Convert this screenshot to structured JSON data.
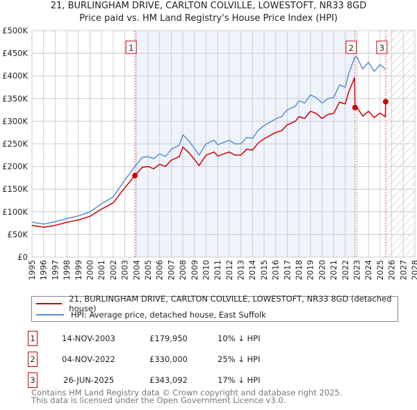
{
  "header": {
    "title": "21, BURLINGHAM DRIVE, CARLTON COLVILLE, LOWESTOFT, NR33 8GD",
    "subtitle": "Price paid vs. HM Land Registry's House Price Index (HPI)"
  },
  "chart_data": {
    "type": "line",
    "title": "21, BURLINGHAM DRIVE, CARLTON COLVILLE, LOWESTOFT, NR33 8GD",
    "xlim": [
      1995,
      2028
    ],
    "ylim": [
      0,
      500000
    ],
    "x_ticks": [
      "1995",
      "1996",
      "1997",
      "1998",
      "1999",
      "2000",
      "2001",
      "2002",
      "2003",
      "2004",
      "2005",
      "2006",
      "2007",
      "2008",
      "2009",
      "2010",
      "2011",
      "2012",
      "2013",
      "2014",
      "2015",
      "2016",
      "2017",
      "2018",
      "2019",
      "2020",
      "2021",
      "2022",
      "2023",
      "2024",
      "2025",
      "2026",
      "2027",
      "2028"
    ],
    "y_ticks": [
      {
        "v": 0,
        "label": "£0"
      },
      {
        "v": 50000,
        "label": "£50K"
      },
      {
        "v": 100000,
        "label": "£100K"
      },
      {
        "v": 150000,
        "label": "£150K"
      },
      {
        "v": 200000,
        "label": "£200K"
      },
      {
        "v": 250000,
        "label": "£250K"
      },
      {
        "v": 300000,
        "label": "£300K"
      },
      {
        "v": 350000,
        "label": "£350K"
      },
      {
        "v": 400000,
        "label": "£400K"
      },
      {
        "v": 450000,
        "label": "£450K"
      },
      {
        "v": 500000,
        "label": "£500K"
      }
    ],
    "grid": true,
    "shaded_range": [
      2003.87,
      2022.84
    ],
    "forecast_hatch_from": 2025.48,
    "series": [
      {
        "name": "21, BURLINGHAM DRIVE, CARLTON COLVILLE, LOWESTOFT, NR33 8GD (detached house)",
        "color": "#cc0000",
        "points": [
          [
            1995,
            70000
          ],
          [
            1996,
            66000
          ],
          [
            1997,
            70000
          ],
          [
            1998,
            77000
          ],
          [
            1999,
            82000
          ],
          [
            2000,
            90000
          ],
          [
            2001,
            106000
          ],
          [
            2002,
            120000
          ],
          [
            2003,
            153000
          ],
          [
            2003.87,
            179950
          ],
          [
            2004.5,
            198000
          ],
          [
            2005,
            200000
          ],
          [
            2005.5,
            195000
          ],
          [
            2006,
            205000
          ],
          [
            2006.5,
            200000
          ],
          [
            2007,
            214000
          ],
          [
            2007.7,
            222000
          ],
          [
            2008,
            243000
          ],
          [
            2008.5,
            231000
          ],
          [
            2009,
            216000
          ],
          [
            2009.4,
            202000
          ],
          [
            2010,
            225000
          ],
          [
            2010.7,
            232000
          ],
          [
            2011,
            223000
          ],
          [
            2012,
            232000
          ],
          [
            2012.5,
            225000
          ],
          [
            2013,
            225000
          ],
          [
            2013.5,
            238000
          ],
          [
            2014,
            236000
          ],
          [
            2014.5,
            252000
          ],
          [
            2015,
            261000
          ],
          [
            2016,
            275000
          ],
          [
            2016.5,
            279000
          ],
          [
            2017,
            292000
          ],
          [
            2017.7,
            300000
          ],
          [
            2018,
            310000
          ],
          [
            2018.5,
            306000
          ],
          [
            2019,
            322000
          ],
          [
            2019.5,
            317000
          ],
          [
            2020,
            306000
          ],
          [
            2020.5,
            315000
          ],
          [
            2021,
            317000
          ],
          [
            2021.5,
            342000
          ],
          [
            2022,
            338000
          ],
          [
            2022.3,
            365000
          ],
          [
            2022.8,
            396000
          ],
          [
            2022.84,
            330000
          ],
          [
            2023,
            331000
          ],
          [
            2023.5,
            311000
          ],
          [
            2024,
            322000
          ],
          [
            2024.5,
            308000
          ],
          [
            2025,
            318000
          ],
          [
            2025.45,
            310000
          ],
          [
            2025.48,
            343092
          ]
        ]
      },
      {
        "name": "HPI: Average price, detached house, East Suffolk",
        "color": "#5b8fd0",
        "points": [
          [
            1995,
            77000
          ],
          [
            1996,
            73000
          ],
          [
            1997,
            78000
          ],
          [
            1998,
            85000
          ],
          [
            1999,
            91000
          ],
          [
            2000,
            100000
          ],
          [
            2001,
            118000
          ],
          [
            2002,
            133000
          ],
          [
            2003,
            170000
          ],
          [
            2003.87,
            200000
          ],
          [
            2004.5,
            220000
          ],
          [
            2005,
            222000
          ],
          [
            2005.5,
            217000
          ],
          [
            2006,
            228000
          ],
          [
            2006.5,
            222000
          ],
          [
            2007,
            238000
          ],
          [
            2007.7,
            247000
          ],
          [
            2008,
            270000
          ],
          [
            2008.5,
            257000
          ],
          [
            2009,
            240000
          ],
          [
            2009.4,
            225000
          ],
          [
            2010,
            250000
          ],
          [
            2010.7,
            258000
          ],
          [
            2011,
            248000
          ],
          [
            2012,
            258000
          ],
          [
            2012.5,
            250000
          ],
          [
            2013,
            250000
          ],
          [
            2013.5,
            264000
          ],
          [
            2014,
            262000
          ],
          [
            2014.5,
            280000
          ],
          [
            2015,
            290000
          ],
          [
            2016,
            305000
          ],
          [
            2016.5,
            310000
          ],
          [
            2017,
            325000
          ],
          [
            2017.7,
            333000
          ],
          [
            2018,
            345000
          ],
          [
            2018.5,
            340000
          ],
          [
            2019,
            358000
          ],
          [
            2019.5,
            352000
          ],
          [
            2020,
            340000
          ],
          [
            2020.5,
            350000
          ],
          [
            2021,
            352000
          ],
          [
            2021.5,
            380000
          ],
          [
            2022,
            375000
          ],
          [
            2022.3,
            405000
          ],
          [
            2022.8,
            440000
          ],
          [
            2023,
            442000
          ],
          [
            2023.5,
            415000
          ],
          [
            2024,
            430000
          ],
          [
            2024.5,
            410000
          ],
          [
            2025,
            425000
          ],
          [
            2025.45,
            415000
          ]
        ]
      }
    ],
    "sales": [
      {
        "label": "1",
        "x": 2003.87,
        "price": 179950
      },
      {
        "label": "2",
        "x": 2022.84,
        "price": 330000
      },
      {
        "label": "3",
        "x": 2025.48,
        "price": 343092
      }
    ]
  },
  "legend": {
    "red": "21, BURLINGHAM DRIVE, CARLTON COLVILLE, LOWESTOFT, NR33 8GD (detached house)",
    "blue": "HPI: Average price, detached house, East Suffolk"
  },
  "table": [
    {
      "n": "1",
      "date": "14-NOV-2003",
      "price": "£179,950",
      "hpi": "10% ↓ HPI"
    },
    {
      "n": "2",
      "date": "04-NOV-2022",
      "price": "£330,000",
      "hpi": "25% ↓ HPI"
    },
    {
      "n": "3",
      "date": "26-JUN-2025",
      "price": "£343,092",
      "hpi": "17% ↓ HPI"
    }
  ],
  "footer": {
    "line1": "Contains HM Land Registry data © Crown copyright and database right 2025.",
    "line2": "This data is licensed under the Open Government Licence v3.0."
  }
}
